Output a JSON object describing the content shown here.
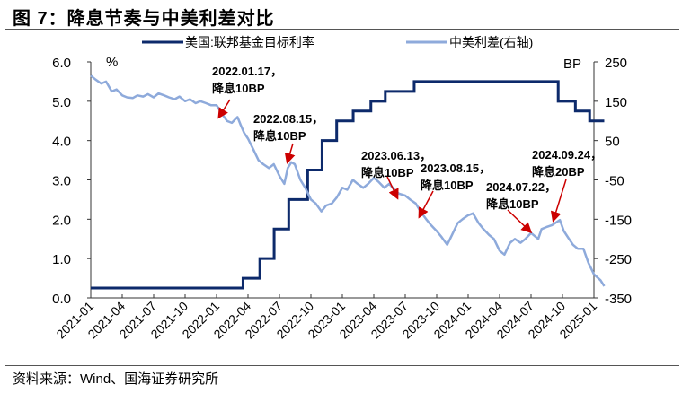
{
  "title": "图 7：降息节奏与中美利差对比",
  "source": "资料来源：Wind、国海证券研究所",
  "chart_data": {
    "type": "line",
    "title": "图 7：降息节奏与中美利差对比",
    "left_axis": {
      "unit": "%",
      "ylim": [
        0,
        6
      ],
      "ticks": [
        "0.0",
        "1.0",
        "2.0",
        "3.0",
        "4.0",
        "5.0",
        "6.0"
      ]
    },
    "right_axis": {
      "unit": "BP",
      "ylim": [
        -350,
        250
      ],
      "ticks": [
        "-350",
        "-250",
        "-150",
        "-50",
        "50",
        "150",
        "250"
      ]
    },
    "x_ticks": [
      "2021-01",
      "2021-04",
      "2021-07",
      "2021-10",
      "2022-01",
      "2022-04",
      "2022-07",
      "2022-10",
      "2023-01",
      "2023-04",
      "2023-07",
      "2023-10",
      "2024-01",
      "2024-04",
      "2024-07",
      "2024-10",
      "2025-01"
    ],
    "legend_placement": "top",
    "grid": false,
    "colors": {
      "fed": "#0d2a6b",
      "spread": "#8eaadb",
      "arrow": "#cc0000"
    },
    "series": [
      {
        "name": "美国:联邦基金目标利率",
        "axis": "left",
        "step": true,
        "points": [
          [
            "2021-01-01",
            0.25
          ],
          [
            "2022-03-17",
            0.5
          ],
          [
            "2022-05-05",
            1.0
          ],
          [
            "2022-06-16",
            1.75
          ],
          [
            "2022-07-28",
            2.5
          ],
          [
            "2022-09-22",
            3.25
          ],
          [
            "2022-11-03",
            4.0
          ],
          [
            "2022-12-15",
            4.5
          ],
          [
            "2023-02-02",
            4.75
          ],
          [
            "2023-03-23",
            5.0
          ],
          [
            "2023-05-04",
            5.25
          ],
          [
            "2023-07-27",
            5.5
          ],
          [
            "2024-09-19",
            5.0
          ],
          [
            "2024-11-08",
            4.75
          ],
          [
            "2024-12-19",
            4.5
          ],
          [
            "2025-01-31",
            4.5
          ]
        ]
      },
      {
        "name": "中美利差(右轴)",
        "axis": "right",
        "points": [
          [
            "2021-01-01",
            215
          ],
          [
            "2021-01-15",
            205
          ],
          [
            "2021-02-01",
            195
          ],
          [
            "2021-02-15",
            200
          ],
          [
            "2021-03-01",
            175
          ],
          [
            "2021-03-15",
            180
          ],
          [
            "2021-04-01",
            165
          ],
          [
            "2021-04-15",
            160
          ],
          [
            "2021-05-01",
            158
          ],
          [
            "2021-05-15",
            165
          ],
          [
            "2021-06-01",
            162
          ],
          [
            "2021-06-15",
            168
          ],
          [
            "2021-07-01",
            160
          ],
          [
            "2021-07-15",
            170
          ],
          [
            "2021-08-01",
            165
          ],
          [
            "2021-08-15",
            160
          ],
          [
            "2021-09-01",
            155
          ],
          [
            "2021-09-15",
            162
          ],
          [
            "2021-10-01",
            150
          ],
          [
            "2021-10-15",
            155
          ],
          [
            "2021-11-01",
            145
          ],
          [
            "2021-11-15",
            150
          ],
          [
            "2021-12-01",
            145
          ],
          [
            "2021-12-15",
            140
          ],
          [
            "2022-01-01",
            140
          ],
          [
            "2022-01-17",
            118
          ],
          [
            "2022-02-01",
            100
          ],
          [
            "2022-02-15",
            95
          ],
          [
            "2022-03-01",
            110
          ],
          [
            "2022-03-10",
            90
          ],
          [
            "2022-03-20",
            70
          ],
          [
            "2022-04-01",
            55
          ],
          [
            "2022-04-15",
            30
          ],
          [
            "2022-05-01",
            0
          ],
          [
            "2022-05-15",
            -10
          ],
          [
            "2022-06-01",
            -20
          ],
          [
            "2022-06-15",
            -10
          ],
          [
            "2022-07-01",
            -40
          ],
          [
            "2022-07-15",
            -60
          ],
          [
            "2022-07-25",
            -20
          ],
          [
            "2022-08-05",
            -5
          ],
          [
            "2022-08-15",
            -10
          ],
          [
            "2022-09-01",
            -50
          ],
          [
            "2022-09-15",
            -70
          ],
          [
            "2022-10-01",
            -100
          ],
          [
            "2022-10-15",
            -110
          ],
          [
            "2022-11-01",
            -130
          ],
          [
            "2022-11-15",
            -115
          ],
          [
            "2022-12-01",
            -110
          ],
          [
            "2022-12-15",
            -95
          ],
          [
            "2023-01-01",
            -70
          ],
          [
            "2023-01-15",
            -75
          ],
          [
            "2023-02-01",
            -50
          ],
          [
            "2023-02-15",
            -60
          ],
          [
            "2023-03-01",
            -70
          ],
          [
            "2023-03-15",
            -60
          ],
          [
            "2023-04-01",
            -45
          ],
          [
            "2023-04-15",
            -55
          ],
          [
            "2023-05-01",
            -70
          ],
          [
            "2023-05-15",
            -60
          ],
          [
            "2023-06-01",
            -75
          ],
          [
            "2023-06-13",
            -85
          ],
          [
            "2023-07-01",
            -90
          ],
          [
            "2023-07-15",
            -100
          ],
          [
            "2023-08-01",
            -110
          ],
          [
            "2023-08-15",
            -130
          ],
          [
            "2023-09-01",
            -150
          ],
          [
            "2023-09-15",
            -165
          ],
          [
            "2023-10-01",
            -180
          ],
          [
            "2023-10-15",
            -195
          ],
          [
            "2023-11-01",
            -215
          ],
          [
            "2023-11-15",
            -190
          ],
          [
            "2023-12-01",
            -160
          ],
          [
            "2023-12-15",
            -150
          ],
          [
            "2024-01-01",
            -140
          ],
          [
            "2024-01-15",
            -135
          ],
          [
            "2024-02-01",
            -160
          ],
          [
            "2024-02-15",
            -175
          ],
          [
            "2024-03-01",
            -190
          ],
          [
            "2024-03-15",
            -200
          ],
          [
            "2024-04-01",
            -230
          ],
          [
            "2024-04-15",
            -240
          ],
          [
            "2024-05-01",
            -210
          ],
          [
            "2024-05-15",
            -200
          ],
          [
            "2024-06-01",
            -210
          ],
          [
            "2024-06-15",
            -200
          ],
          [
            "2024-07-01",
            -185
          ],
          [
            "2024-07-22",
            -200
          ],
          [
            "2024-08-01",
            -175
          ],
          [
            "2024-08-15",
            -170
          ],
          [
            "2024-09-01",
            -165
          ],
          [
            "2024-09-24",
            -152
          ],
          [
            "2024-10-05",
            -180
          ],
          [
            "2024-10-20",
            -200
          ],
          [
            "2024-11-01",
            -215
          ],
          [
            "2024-11-15",
            -225
          ],
          [
            "2024-12-01",
            -225
          ],
          [
            "2024-12-15",
            -260
          ],
          [
            "2025-01-01",
            -290
          ],
          [
            "2025-01-20",
            -305
          ],
          [
            "2025-01-31",
            -320
          ]
        ]
      }
    ],
    "annotations": [
      {
        "line1": "2022.01.17，",
        "line2": "降息10BP",
        "date": "2022-01-17"
      },
      {
        "line1": "2022.08.15，",
        "line2": "降息10BP",
        "date": "2022-08-15"
      },
      {
        "line1": "2023.06.13，",
        "line2": "降息10BP",
        "date": "2023-06-13"
      },
      {
        "line1": "2023.08.15，",
        "line2": "降息10BP",
        "date": "2023-08-15"
      },
      {
        "line1": "2024.07.22，",
        "line2": "降息10BP",
        "date": "2024-07-22"
      },
      {
        "line1": "2024.09.24，",
        "line2": "降息20BP",
        "date": "2024-09-24"
      }
    ]
  }
}
